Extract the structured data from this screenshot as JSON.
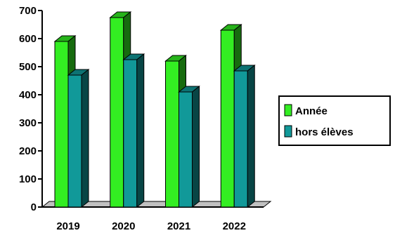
{
  "chart_data": {
    "type": "bar",
    "categories": [
      "2019",
      "2020",
      "2021",
      "2022"
    ],
    "series": [
      {
        "name": "Année",
        "values": [
          590,
          675,
          520,
          630
        ],
        "color": "#33ee22"
      },
      {
        "name": "hors élèves",
        "values": [
          470,
          525,
          410,
          485
        ],
        "color": "#119999"
      }
    ],
    "ylim": [
      0,
      700
    ],
    "yticks": [
      0,
      100,
      200,
      300,
      400,
      500,
      600,
      700
    ],
    "title": "",
    "xlabel": "",
    "ylabel": "",
    "grid": false,
    "legend_position": "right",
    "style": "3d-clustered-columns"
  }
}
